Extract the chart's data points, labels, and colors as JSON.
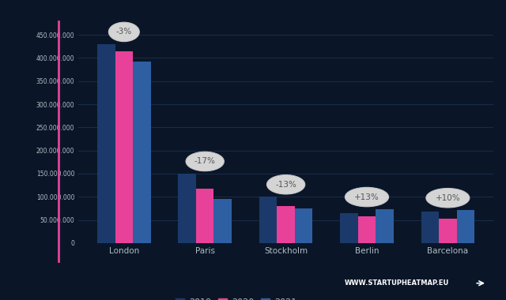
{
  "categories": [
    "London",
    "Paris",
    "Stockholm",
    "Berlin",
    "Barcelona"
  ],
  "series": {
    "2019": [
      430000000,
      150000000,
      100000000,
      65000000,
      68000000
    ],
    "2020": [
      415000000,
      118000000,
      80000000,
      58000000,
      52000000
    ],
    "2021": [
      393000000,
      95000000,
      75000000,
      73000000,
      71000000
    ]
  },
  "colors": {
    "2019": "#1b3a6b",
    "2020": "#e8419a",
    "2021": "#2e5fa3"
  },
  "annotations": [
    "-3%",
    "-17%",
    "-13%",
    "+13%",
    "+10%"
  ],
  "ylim": [
    0,
    480000000
  ],
  "yticks": [
    0,
    50000000,
    100000000,
    150000000,
    200000000,
    250000000,
    300000000,
    350000000,
    400000000,
    450000000
  ],
  "background_color": "#0a1628",
  "grid_color": "#1e3050",
  "text_color": "#b0bec5",
  "annotation_bg": "#e0e0e0",
  "annotation_color": "#555555",
  "watermark": "WWW.STARTUPHEATMAP.EU",
  "bar_width": 0.22,
  "left_accent_color": "#e8419a"
}
